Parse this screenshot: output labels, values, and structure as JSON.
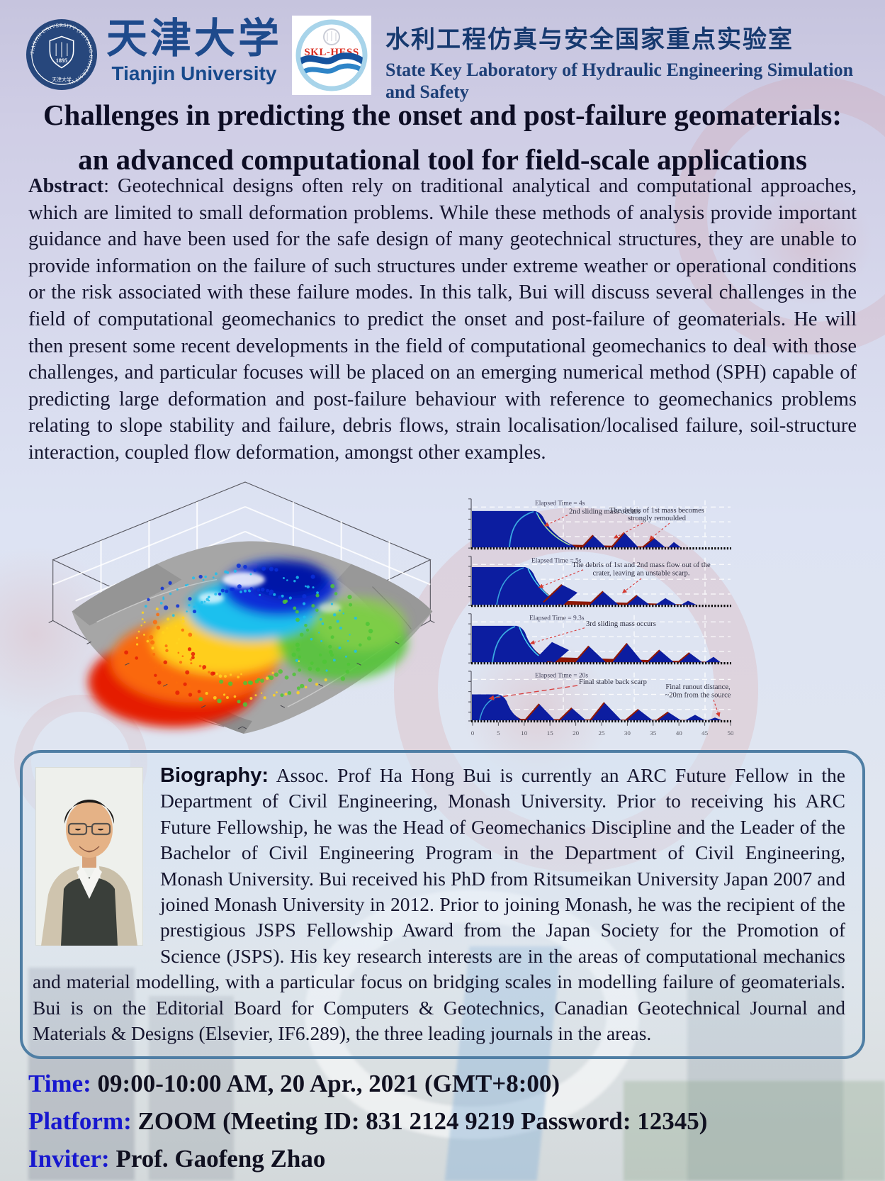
{
  "header": {
    "university_cn": "天津大学",
    "university_en": "Tianjin University",
    "seal": {
      "ring_text": "TIANJIN UNIVERSITY (PEIYANG UNIVERSITY)",
      "year": "1895",
      "seal_cn": "天津大学"
    },
    "skl_logo_text": "SKL-HESS",
    "lab_cn": "水利工程仿真与安全国家重点实验室",
    "lab_en_line1": "State Key Laboratory of Hydraulic Engineering Simulation",
    "lab_en_line2": "and Safety"
  },
  "title": {
    "line1": "Challenges in predicting the onset and post-failure geomaterials:",
    "line2": "an advanced computational tool for field-scale applications"
  },
  "abstract": {
    "label": "Abstract",
    "text": ": Geotechnical designs often rely on traditional analytical and computational approaches, which are limited to small deformation problems. While these methods of analysis provide important guidance and have been used for the safe design of many geotechnical structures, they are unable to provide information on the failure of such structures under extreme weather or operational conditions or the risk associated with these failure modes. In this talk, Bui will discuss several challenges in the field of computational geomechanics to predict the onset and post-failure of geomaterials. He will then present some recent developments in the field of computational geomechanics to deal with those challenges, and particular focuses will be placed on an emerging numerical method (SPH) capable of predicting large deformation and post-failure behaviour with reference to geomechanics problems relating to slope stability and failure, debris flows, strain localisation/localised failure, soil-structure interaction, coupled flow deformation, amongst other examples."
  },
  "figures": {
    "panels": [
      {
        "time": "Elapsed Time = 4s",
        "ann1": "2nd sliding mass occurs",
        "ann2_line1": "The debris of 1st mass becomes",
        "ann2_line2": "strongly remoulded"
      },
      {
        "time": "Elapsed Time = 5s",
        "ann1_line1": "The debris of 1st and 2nd mass flow out of the",
        "ann1_line2": "crater, leaving an unstable scarp."
      },
      {
        "time": "Elapsed Time = 9.3s",
        "ann1": "3rd sliding mass occurs"
      },
      {
        "time": "Elapsed Time = 20s",
        "ann1": "Final stable back scarp",
        "ann2_line1": "Final runout distance,",
        "ann2_line2": "~20m from the source"
      }
    ],
    "x_axis_ticks": [
      "0",
      "5",
      "10",
      "15",
      "20",
      "25",
      "30",
      "35",
      "40",
      "45",
      "50"
    ]
  },
  "biography": {
    "label": "Biography:",
    "text": " Assoc. Prof Ha Hong Bui is currently an ARC Future Fellow in the Department of Civil Engineering, Monash University. Prior to receiving his ARC Future Fellowship, he was the Head of Geomechanics Discipline and the Leader of the Bachelor of Civil Engineering Program in the Department of Civil Engineering, Monash University. Bui received his PhD from Ritsumeikan University Japan 2007 and joined Monash University in 2012. Prior to joining Monash, he was the recipient of the prestigious JSPS Fellowship Award from the Japan Society for the Promotion of Science (JSPS). His key research interests are in the areas of computational mechanics and material modelling, with a particular focus on bridging scales in modelling failure of geomaterials. Bui is on the Editorial Board for Computers & Geotechnics, Canadian Geotechnical Journal and Materials & Designs (Elsevier, IF6.289), the three leading journals in the areas."
  },
  "footer": {
    "time_label": "Time: ",
    "time_value": "09:00-10:00 AM, 20 Apr., 2021 (GMT+8:00)",
    "platform_label": "Platform: ",
    "platform_value": "ZOOM (Meeting ID: 831 2124 9219 Password: 12345)",
    "inviter_label": "Inviter: ",
    "inviter_value": "Prof. Gaofeng Zhao"
  },
  "colors": {
    "page_background_top": "#c6c4de",
    "page_background_bottom": "#e6eaec",
    "title_text": "#0d0d24",
    "header_blue": "#1e4a8c",
    "lab_title_blue": "#16396f",
    "footer_label_blue": "#1717cf",
    "bio_box_border": "#4f7ea4",
    "skl_logo_red": "#d92c20",
    "simulation_mass_blue": "#0c1da0",
    "simulation_debris_red": "#8f1806",
    "watermark_pink": "#d68282"
  }
}
